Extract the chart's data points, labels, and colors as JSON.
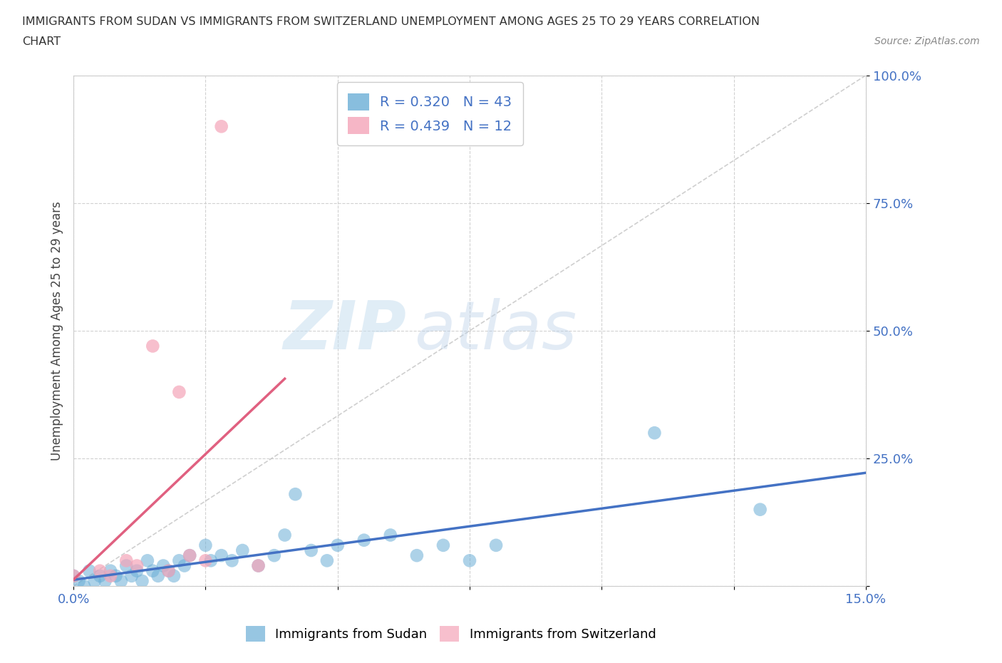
{
  "title_line1": "IMMIGRANTS FROM SUDAN VS IMMIGRANTS FROM SWITZERLAND UNEMPLOYMENT AMONG AGES 25 TO 29 YEARS CORRELATION",
  "title_line2": "CHART",
  "source": "Source: ZipAtlas.com",
  "ylabel": "Unemployment Among Ages 25 to 29 years",
  "xlim": [
    0.0,
    0.15
  ],
  "ylim": [
    0.0,
    1.0
  ],
  "xticks": [
    0.0,
    0.025,
    0.05,
    0.075,
    0.1,
    0.125,
    0.15
  ],
  "yticks": [
    0.0,
    0.25,
    0.5,
    0.75,
    1.0
  ],
  "sudan_color": "#6baed6",
  "switzerland_color": "#f4a4b8",
  "sudan_R": 0.32,
  "sudan_N": 43,
  "switzerland_R": 0.439,
  "switzerland_N": 12,
  "watermark_zip": "ZIP",
  "watermark_atlas": "atlas",
  "sudan_x": [
    0.0,
    0.001,
    0.002,
    0.003,
    0.004,
    0.005,
    0.006,
    0.007,
    0.008,
    0.009,
    0.01,
    0.011,
    0.012,
    0.013,
    0.014,
    0.015,
    0.016,
    0.017,
    0.018,
    0.019,
    0.02,
    0.021,
    0.022,
    0.025,
    0.026,
    0.028,
    0.03,
    0.032,
    0.035,
    0.038,
    0.04,
    0.042,
    0.045,
    0.048,
    0.05,
    0.055,
    0.06,
    0.065,
    0.07,
    0.075,
    0.08,
    0.11,
    0.13
  ],
  "sudan_y": [
    0.02,
    0.01,
    0.0,
    0.03,
    0.01,
    0.02,
    0.01,
    0.03,
    0.02,
    0.01,
    0.04,
    0.02,
    0.03,
    0.01,
    0.05,
    0.03,
    0.02,
    0.04,
    0.03,
    0.02,
    0.05,
    0.04,
    0.06,
    0.08,
    0.05,
    0.06,
    0.05,
    0.07,
    0.04,
    0.06,
    0.1,
    0.18,
    0.07,
    0.05,
    0.08,
    0.09,
    0.1,
    0.06,
    0.08,
    0.05,
    0.08,
    0.3,
    0.15
  ],
  "switzerland_x": [
    0.0,
    0.005,
    0.007,
    0.01,
    0.012,
    0.015,
    0.018,
    0.02,
    0.022,
    0.025,
    0.028,
    0.035
  ],
  "switzerland_y": [
    0.02,
    0.03,
    0.02,
    0.05,
    0.04,
    0.47,
    0.03,
    0.38,
    0.06,
    0.05,
    0.9,
    0.04
  ],
  "diag_line_color": "#cccccc",
  "sudan_trend_color": "#4472c4",
  "switzerland_trend_color": "#e06080"
}
